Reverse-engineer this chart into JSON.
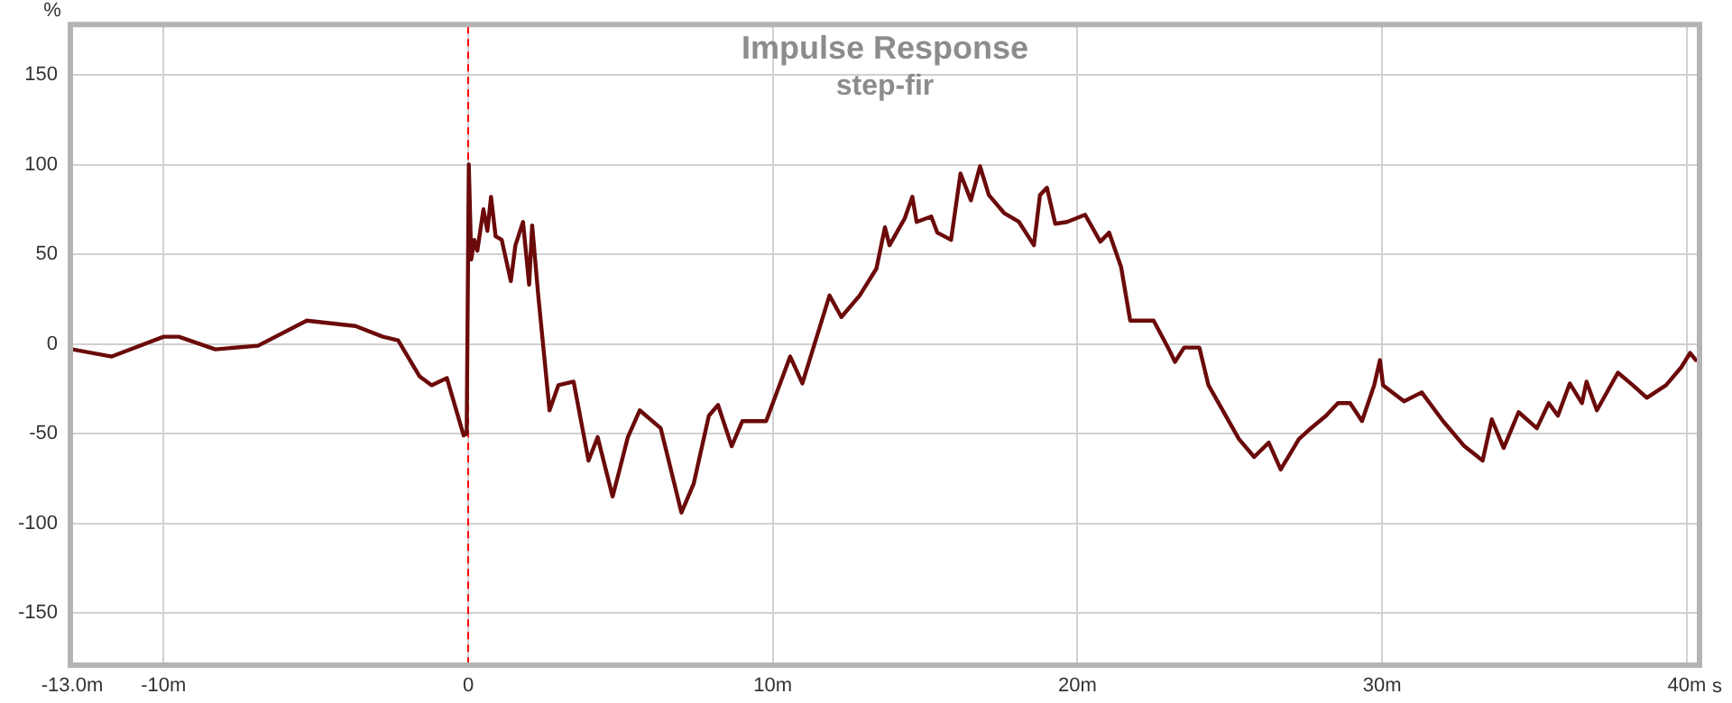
{
  "chart_data": {
    "type": "line",
    "title": "Impulse Response",
    "subtitle": "step-fir",
    "xlabel": "s",
    "ylabel": "%",
    "xlim": [
      -13.0,
      40.36
    ],
    "ylim": [
      -178,
      177
    ],
    "xticks": [
      {
        "value": -13.0,
        "label": "-13.0m"
      },
      {
        "value": -10,
        "label": "-10m"
      },
      0,
      {
        "value": 10,
        "label": "10m"
      },
      {
        "value": 20,
        "label": "20m"
      },
      {
        "value": 30,
        "label": "30m"
      },
      {
        "value": 40,
        "label": "40m"
      }
    ],
    "yticks": [
      -150,
      -100,
      -50,
      0,
      50,
      100,
      150
    ],
    "grid": true,
    "legend": false,
    "marker": "none",
    "line_style": "solid",
    "ref_lines": [
      {
        "axis": "x",
        "value": 0,
        "color": "#ff0000",
        "line_style": "dashed"
      }
    ],
    "series": [
      {
        "color": "#6b0a0a",
        "x": [
          -13.0,
          -11.7,
          -10.0,
          -9.5,
          -8.3,
          -6.9,
          -5.3,
          -3.7,
          -2.8,
          -2.3,
          -1.6,
          -1.2,
          -0.7,
          -0.15,
          -0.05,
          0.02,
          0.1,
          0.2,
          0.3,
          0.5,
          0.63,
          0.75,
          0.9,
          1.1,
          1.4,
          1.55,
          1.8,
          2.0,
          2.1,
          2.3,
          2.67,
          2.96,
          3.46,
          3.95,
          4.25,
          4.74,
          4.94,
          5.24,
          5.63,
          6.32,
          7.0,
          7.4,
          7.9,
          8.2,
          8.65,
          9.0,
          9.78,
          10.57,
          10.97,
          11.86,
          12.25,
          12.85,
          13.4,
          13.68,
          13.83,
          14.33,
          14.58,
          14.72,
          15.2,
          15.4,
          15.85,
          16.16,
          16.5,
          16.8,
          17.09,
          17.59,
          18.08,
          18.57,
          18.77,
          19.0,
          19.27,
          19.66,
          20.25,
          20.75,
          21.04,
          21.43,
          21.73,
          22.5,
          23.0,
          23.2,
          23.5,
          24.0,
          24.3,
          25.3,
          25.8,
          26.28,
          26.67,
          27.27,
          27.66,
          28.16,
          28.55,
          28.95,
          29.34,
          29.74,
          29.93,
          30.03,
          30.72,
          31.3,
          32.0,
          32.7,
          33.3,
          33.6,
          33.99,
          34.48,
          35.08,
          35.47,
          35.77,
          36.16,
          36.56,
          36.71,
          37.05,
          37.74,
          38.23,
          38.69,
          39.32,
          39.82,
          40.11,
          40.3
        ],
        "values": [
          -3,
          -7,
          4,
          4,
          -3,
          -1,
          13,
          10,
          4,
          2,
          -18,
          -23,
          -19,
          -51,
          -50,
          100,
          47,
          58,
          52,
          75,
          63,
          82,
          60,
          58,
          35,
          55,
          68,
          33,
          66,
          27,
          -37,
          -23,
          -21,
          -65,
          -52,
          -85,
          -72,
          -52,
          -37,
          -47,
          -94,
          -78,
          -40,
          -34,
          -57,
          -43,
          -43,
          -7,
          -22,
          27,
          15,
          27,
          42,
          65,
          55,
          70,
          82,
          68,
          71,
          62,
          58,
          95,
          80,
          99,
          83,
          73,
          68,
          55,
          83,
          87,
          67,
          68,
          72,
          57,
          62,
          43,
          13,
          13,
          -3,
          -10,
          -2,
          -2,
          -23,
          -53,
          -63,
          -55,
          -70,
          -53,
          -47,
          -40,
          -33,
          -33,
          -43,
          -23,
          -9,
          -23,
          -32,
          -27,
          -43,
          -57,
          -65,
          -42,
          -58,
          -38,
          -47,
          -33,
          -40,
          -22,
          -33,
          -21,
          -37,
          -16,
          -23,
          -30,
          -23,
          -13,
          -5,
          -9
        ]
      }
    ]
  }
}
